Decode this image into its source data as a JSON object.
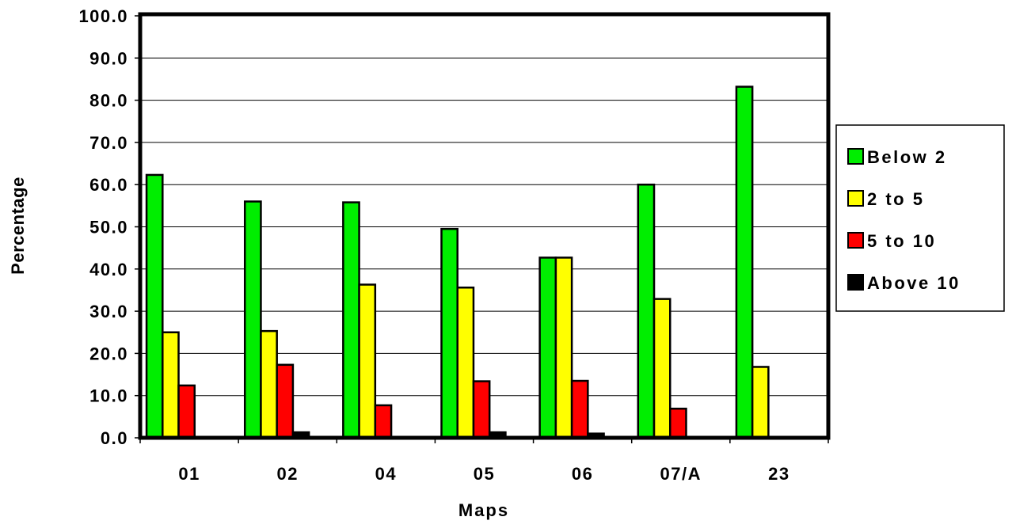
{
  "chart_data": {
    "type": "bar",
    "title": "",
    "xlabel": "Maps",
    "ylabel": "Percentage",
    "ylim": [
      0,
      100
    ],
    "y_ticks": [
      "0.0",
      "10.0",
      "20.0",
      "30.0",
      "40.0",
      "50.0",
      "60.0",
      "70.0",
      "80.0",
      "90.0",
      "100.0"
    ],
    "y_tick_values": [
      0,
      10,
      20,
      30,
      40,
      50,
      60,
      70,
      80,
      90,
      100
    ],
    "grid": "horizontal",
    "legend_position": "right",
    "categories": [
      "01",
      "02",
      "04",
      "05",
      "06",
      "07/A",
      "23"
    ],
    "series": [
      {
        "name": "Below 2",
        "color": "#00ee00",
        "values": [
          62.3,
          56.0,
          55.8,
          49.5,
          42.7,
          60.0,
          83.2
        ]
      },
      {
        "name": "2 to 5",
        "color": "#ffff00",
        "values": [
          25.0,
          25.3,
          36.3,
          35.6,
          42.7,
          32.9,
          16.8
        ]
      },
      {
        "name": "5 to 10",
        "color": "#ff0000",
        "values": [
          12.4,
          17.3,
          7.7,
          13.4,
          13.5,
          6.9,
          0.0
        ]
      },
      {
        "name": "Above 10",
        "color": "#000000",
        "values": [
          0.0,
          1.3,
          0.0,
          1.3,
          1.0,
          0.0,
          0.0
        ]
      }
    ]
  }
}
